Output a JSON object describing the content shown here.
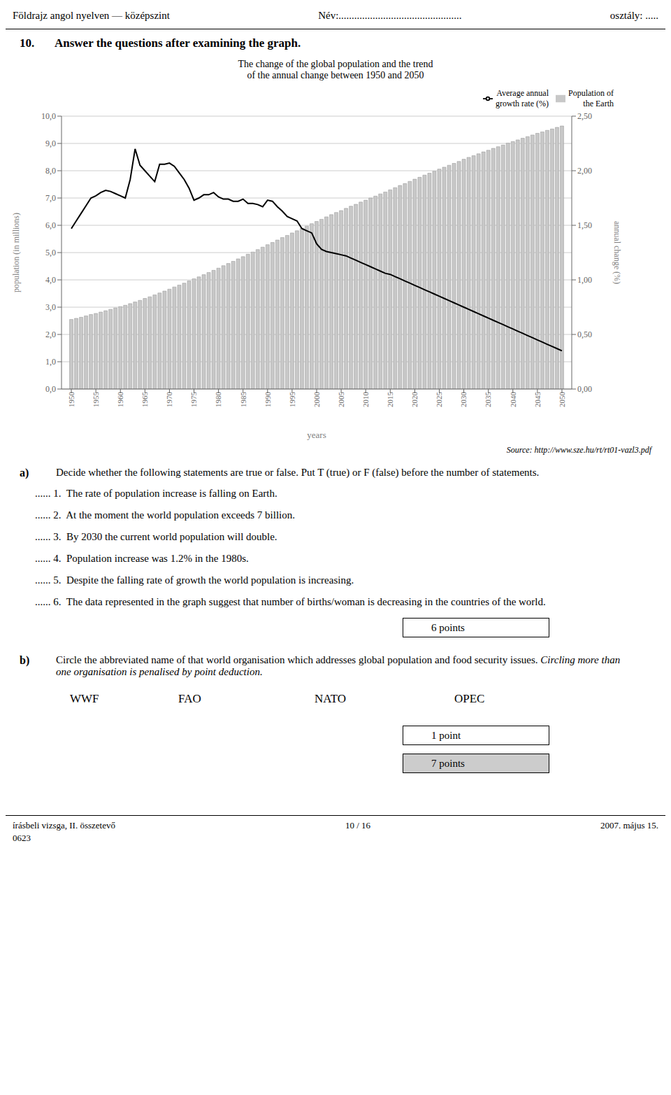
{
  "chart_data": {
    "type": "bar",
    "title": "The change of the global population and the trend\nof the annual change between 1950 and 2050",
    "xlabel": "years",
    "ylabel": "population (in millions)",
    "y2label": "annual change (%)",
    "x": [
      1950,
      1951,
      1952,
      1953,
      1954,
      1955,
      1956,
      1957,
      1958,
      1959,
      1960,
      1961,
      1962,
      1963,
      1964,
      1965,
      1966,
      1967,
      1968,
      1969,
      1970,
      1971,
      1972,
      1973,
      1974,
      1975,
      1976,
      1977,
      1978,
      1979,
      1980,
      1981,
      1982,
      1983,
      1984,
      1985,
      1986,
      1987,
      1988,
      1989,
      1990,
      1991,
      1992,
      1993,
      1994,
      1995,
      1996,
      1997,
      1998,
      1999,
      2000,
      2001,
      2002,
      2003,
      2004,
      2005,
      2006,
      2007,
      2008,
      2009,
      2010,
      2011,
      2012,
      2013,
      2014,
      2015,
      2016,
      2017,
      2018,
      2019,
      2020,
      2021,
      2022,
      2023,
      2024,
      2025,
      2026,
      2027,
      2028,
      2029,
      2030,
      2031,
      2032,
      2033,
      2034,
      2035,
      2036,
      2037,
      2038,
      2039,
      2040,
      2041,
      2042,
      2043,
      2044,
      2045,
      2046,
      2047,
      2048,
      2049,
      2050
    ],
    "series": [
      {
        "name": "Population of\nthe Earth",
        "type": "bar",
        "color": "#c8c8c8",
        "values": [
          2.55,
          2.59,
          2.63,
          2.68,
          2.73,
          2.77,
          2.82,
          2.87,
          2.92,
          2.97,
          3.02,
          3.07,
          3.13,
          3.19,
          3.25,
          3.32,
          3.38,
          3.45,
          3.52,
          3.59,
          3.66,
          3.74,
          3.81,
          3.88,
          3.96,
          4.04,
          4.11,
          4.19,
          4.27,
          4.35,
          4.43,
          4.52,
          4.6,
          4.68,
          4.77,
          4.85,
          4.94,
          5.02,
          5.11,
          5.2,
          5.29,
          5.37,
          5.46,
          5.55,
          5.63,
          5.72,
          5.8,
          5.89,
          5.97,
          6.06,
          6.14,
          6.22,
          6.31,
          6.39,
          6.47,
          6.54,
          6.62,
          6.7,
          6.77,
          6.85,
          6.92,
          7.0,
          7.07,
          7.15,
          7.22,
          7.3,
          7.38,
          7.46,
          7.53,
          7.61,
          7.69,
          7.76,
          7.84,
          7.91,
          7.98,
          8.06,
          8.13,
          8.2,
          8.27,
          8.34,
          8.42,
          8.49,
          8.55,
          8.62,
          8.69,
          8.75,
          8.82,
          8.88,
          8.94,
          9.01,
          9.07,
          9.13,
          9.19,
          9.25,
          9.31,
          9.37,
          9.42,
          9.48,
          9.53,
          9.59,
          9.64
        ]
      },
      {
        "name": "Average annual\ngrowth rate (%)",
        "type": "line",
        "color": "#000000",
        "axis": "y2",
        "values": [
          1.47,
          1.54,
          1.61,
          1.68,
          1.75,
          1.77,
          1.8,
          1.82,
          1.81,
          1.79,
          1.77,
          1.75,
          1.92,
          2.2,
          2.05,
          2.0,
          1.95,
          1.9,
          2.06,
          2.06,
          2.07,
          2.04,
          1.98,
          1.92,
          1.84,
          1.73,
          1.75,
          1.78,
          1.78,
          1.8,
          1.76,
          1.74,
          1.74,
          1.72,
          1.72,
          1.74,
          1.7,
          1.7,
          1.69,
          1.67,
          1.73,
          1.72,
          1.67,
          1.63,
          1.58,
          1.56,
          1.54,
          1.47,
          1.45,
          1.43,
          1.33,
          1.28,
          1.26,
          1.25,
          1.24,
          1.23,
          1.22,
          1.2,
          1.18,
          1.16,
          1.14,
          1.12,
          1.1,
          1.08,
          1.06,
          1.05,
          1.03,
          1.01,
          0.99,
          0.97,
          0.95,
          0.93,
          0.91,
          0.89,
          0.87,
          0.85,
          0.83,
          0.81,
          0.79,
          0.77,
          0.75,
          0.73,
          0.71,
          0.69,
          0.67,
          0.65,
          0.63,
          0.61,
          0.59,
          0.57,
          0.55,
          0.53,
          0.51,
          0.49,
          0.47,
          0.45,
          0.43,
          0.41,
          0.39,
          0.37,
          0.35
        ]
      }
    ],
    "xlim": [
      1948,
      2052
    ],
    "xticks": [
      1950,
      1955,
      1960,
      1965,
      1970,
      1975,
      1980,
      1985,
      1990,
      1995,
      2000,
      2005,
      2010,
      2015,
      2020,
      2025,
      2030,
      2035,
      2040,
      2045,
      2050
    ],
    "ylim": [
      0.0,
      10.0
    ],
    "yticks": [
      {
        "value": 0.0,
        "label": "0,0"
      },
      {
        "value": 1.0,
        "label": "1,0"
      },
      {
        "value": 2.0,
        "label": "2,0"
      },
      {
        "value": 3.0,
        "label": "3,0"
      },
      {
        "value": 4.0,
        "label": "4,0"
      },
      {
        "value": 5.0,
        "label": "5,0"
      },
      {
        "value": 6.0,
        "label": "6,0"
      },
      {
        "value": 7.0,
        "label": "7,0"
      },
      {
        "value": 8.0,
        "label": "8,0"
      },
      {
        "value": 9.0,
        "label": "9,0"
      },
      {
        "value": 10.0,
        "label": "10,0"
      }
    ],
    "y2lim": [
      0.0,
      2.5
    ],
    "y2ticks": [
      {
        "value": 0.0,
        "label": "0,00"
      },
      {
        "value": 0.5,
        "label": "0,50"
      },
      {
        "value": 1.0,
        "label": "1,00"
      },
      {
        "value": 1.5,
        "label": "1,50"
      },
      {
        "value": 2.0,
        "label": "2,00"
      },
      {
        "value": 2.5,
        "label": "2,50"
      }
    ],
    "grid": true,
    "legend": "upper right",
    "annotations": [
      "Földrajz angol nyelven — középszint",
      "Név:...............................................",
      "osztály: .....",
      "10.",
      "Answer the questions after examining the graph.",
      "Source: http://www.sze.hu/rt/rt01-vazl3.pdf",
      "a)",
      "Decide whether the following statements are true or false. Put T (true) or F (false) before the number of statements.",
      "...... 1.  The rate of population increase is falling on Earth.",
      "...... 2.  At the moment the world population exceeds 7 billion.",
      "...... 3.  By 2030 the current world population will double.",
      "...... 4.  Population increase was 1.2% in the 1980s.",
      "...... 5.  Despite the falling rate of growth the world population is increasing.",
      "...... 6.  The data represented in the graph suggest that number of births/woman is decreasing in the countries of the world.",
      "6 points",
      "b)",
      "Circle the abbreviated name of that world organisation which addresses global population and food security issues.",
      "Circling more than one organisation is penalised by point deduction.",
      "WWF",
      "FAO",
      "NATO",
      "OPEC",
      "1 point",
      "7 points",
      "írásbeli vizsga, II. összetevő",
      "10 / 16",
      "2007. május 15.",
      "0623"
    ]
  }
}
